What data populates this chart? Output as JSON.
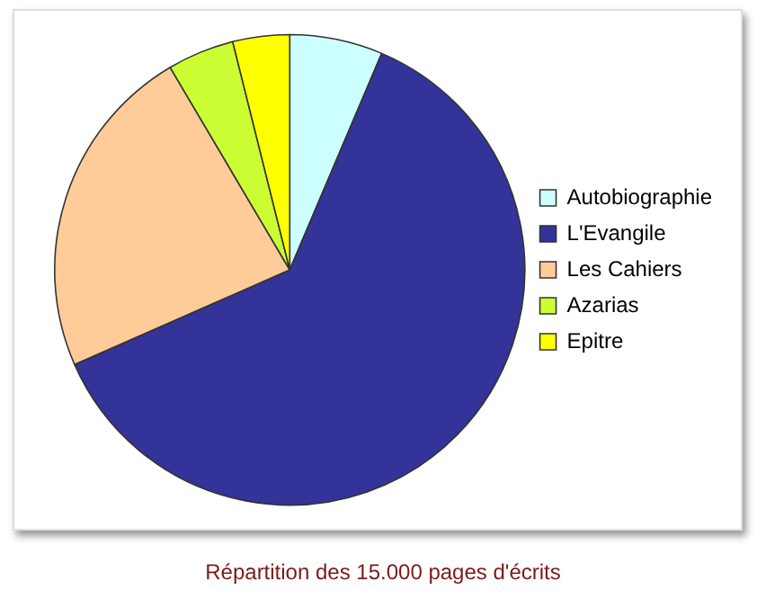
{
  "chart_data": {
    "type": "pie",
    "title": "Répartition des 15.000 pages d'écrits",
    "categories": [
      "Autobiographie",
      "L'Evangile",
      "Les Cahiers",
      "Azarias",
      "Epitre"
    ],
    "values": [
      6.4,
      62.0,
      23.1,
      4.6,
      3.9
    ],
    "colors": [
      "#ccffff",
      "#333399",
      "#ffcc99",
      "#ccff33",
      "#ffff00"
    ],
    "legend": "right"
  }
}
